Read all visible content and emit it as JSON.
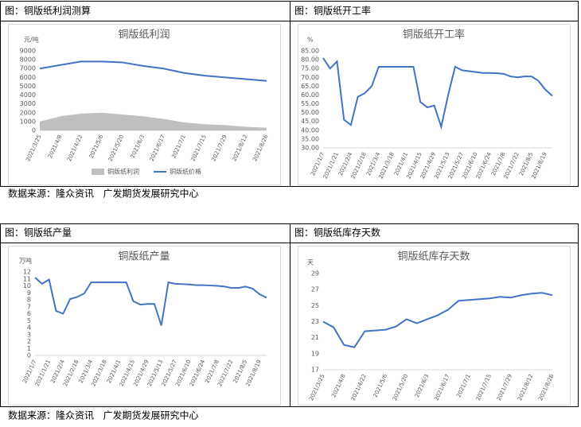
{
  "headers": [
    "图：铜版纸利润测算",
    "图：铜版纸开工率",
    "图：铜版纸产量",
    "图：铜版纸库存天数"
  ],
  "sources": [
    "数据来源：隆众资讯   广发期货发展研究中心",
    "数据来源：隆众资讯   广发期货发展研究中心"
  ],
  "chart_data": [
    {
      "type": "line",
      "title": "铜版纸利润",
      "y_unit": "元/吨",
      "categories": [
        "2021/3/25",
        "2021/4/8",
        "2021/4/22",
        "2021/5/6",
        "2021/5/20",
        "2021/6/3",
        "2021/6/17",
        "2021/7/1",
        "2021/7/15",
        "2021/7/29",
        "2021/8/12",
        "2021/8/26"
      ],
      "series": [
        {
          "name": "铜版纸利润",
          "color": "#bfbfbf",
          "area": true,
          "values": [
            1000,
            1600,
            1900,
            2000,
            1800,
            1600,
            1300,
            900,
            700,
            600,
            400,
            300
          ]
        },
        {
          "name": "铜版纸价格",
          "color": "#4472c4",
          "area": false,
          "values": [
            7000,
            7400,
            7800,
            7800,
            7700,
            7300,
            7000,
            6500,
            6200,
            6000,
            5800,
            5600
          ]
        }
      ],
      "ylim": [
        0,
        9000
      ],
      "yticks": [
        0,
        1000,
        2000,
        3000,
        4000,
        5000,
        6000,
        7000,
        8000,
        9000
      ],
      "grid": false,
      "legend": "bottom"
    },
    {
      "type": "line",
      "title": "铜版纸开工率",
      "y_unit": "%",
      "categories": [
        "2021/1/7",
        null,
        "2021/1/21",
        null,
        "2021/2/4",
        null,
        "2021/2/18",
        null,
        "2021/3/4",
        null,
        "2021/3/18",
        null,
        "2021/4/1",
        null,
        "2021/4/15",
        null,
        "2021/4/29",
        null,
        "2021/5/13",
        null,
        "2021/5/27",
        null,
        "2021/6/10",
        null,
        "2021/6/24",
        null,
        "2021/7/8",
        null,
        "2021/7/22",
        null,
        "2021/8/5",
        null,
        "2021/8/19",
        null
      ],
      "series": [
        {
          "name": "铜版纸开工率",
          "color": "#4472c4",
          "area": false,
          "values": [
            81,
            75,
            79,
            46,
            43,
            59,
            61,
            65,
            76,
            76,
            76,
            76,
            76,
            76,
            56,
            53,
            54,
            42,
            60,
            76,
            74,
            73.5,
            73,
            72.5,
            72.5,
            72.3,
            72,
            70.5,
            70,
            70.5,
            70.5,
            68,
            63,
            59.5
          ]
        }
      ],
      "ylim": [
        30,
        85
      ],
      "yticks": [
        {
          "value": 30,
          "label": "30.00"
        },
        {
          "value": 35,
          "label": "35.00"
        },
        {
          "value": 40,
          "label": "40.00"
        },
        {
          "value": 45,
          "label": "45.00"
        },
        {
          "value": 50,
          "label": "50.00"
        },
        {
          "value": 55,
          "label": "55.00"
        },
        {
          "value": 60,
          "label": "60.00"
        },
        {
          "value": 65,
          "label": "65.00"
        },
        {
          "value": 70,
          "label": "70.00"
        },
        {
          "value": 75,
          "label": "75.00"
        },
        {
          "value": 80,
          "label": "80.00"
        },
        {
          "value": 85,
          "label": "85.00"
        }
      ],
      "grid": false,
      "legend": "none"
    },
    {
      "type": "line",
      "title": "铜版纸产量",
      "y_unit": "万吨",
      "categories": [
        "2021/1/7",
        null,
        "2021/1/21",
        null,
        "2021/2/4",
        null,
        "2021/2/18",
        null,
        "2021/3/4",
        null,
        "2021/3/18",
        null,
        "2021/4/1",
        null,
        "2021/4/15",
        null,
        "2021/4/29",
        null,
        "2021/5/13",
        null,
        "2021/5/27",
        null,
        "2021/6/10",
        null,
        "2021/6/24",
        null,
        "2021/7/8",
        null,
        "2021/7/22",
        null,
        "2021/8/5",
        null,
        "2021/8/19",
        null
      ],
      "series": [
        {
          "name": "铜版纸产量",
          "color": "#4472c4",
          "area": false,
          "values": [
            11.2,
            10.3,
            10.9,
            6.4,
            6.0,
            8.1,
            8.4,
            8.9,
            10.5,
            10.5,
            10.5,
            10.5,
            10.5,
            10.5,
            7.8,
            7.3,
            7.4,
            7.4,
            4.3,
            10.5,
            10.3,
            10.25,
            10.2,
            10.1,
            10.1,
            10.05,
            10.0,
            9.9,
            9.7,
            9.7,
            9.9,
            9.6,
            8.8,
            8.3
          ]
        }
      ],
      "ylim": [
        0,
        12
      ],
      "yticks": [
        0,
        1,
        2,
        3,
        4,
        5,
        6,
        7,
        8,
        9,
        10,
        11,
        12
      ],
      "grid": false,
      "legend": "none"
    },
    {
      "type": "line",
      "title": "铜版纸库存天数",
      "y_unit": "天",
      "categories": [
        "2021/3/25",
        null,
        "2021/4/8",
        null,
        "2021/4/22",
        null,
        "2021/5/6",
        null,
        "2021/5/20",
        null,
        "2021/6/3",
        null,
        "2021/6/17",
        null,
        "2021/7/1",
        null,
        "2021/7/15",
        null,
        "2021/7/29",
        null,
        "2021/8/12",
        null,
        "2021/8/26"
      ],
      "series": [
        {
          "name": "铜版纸库存天数",
          "color": "#4472c4",
          "area": false,
          "values": [
            23.0,
            22.3,
            20.1,
            19.8,
            21.8,
            21.9,
            22.0,
            22.4,
            23.3,
            22.8,
            23.3,
            23.8,
            24.5,
            25.6,
            25.7,
            25.8,
            25.9,
            26.1,
            26.0,
            26.3,
            26.5,
            26.6,
            26.3
          ]
        }
      ],
      "ylim": [
        17,
        29
      ],
      "yticks": [
        17,
        19,
        21,
        23,
        25,
        27,
        29
      ],
      "grid": false,
      "legend": "none"
    }
  ]
}
